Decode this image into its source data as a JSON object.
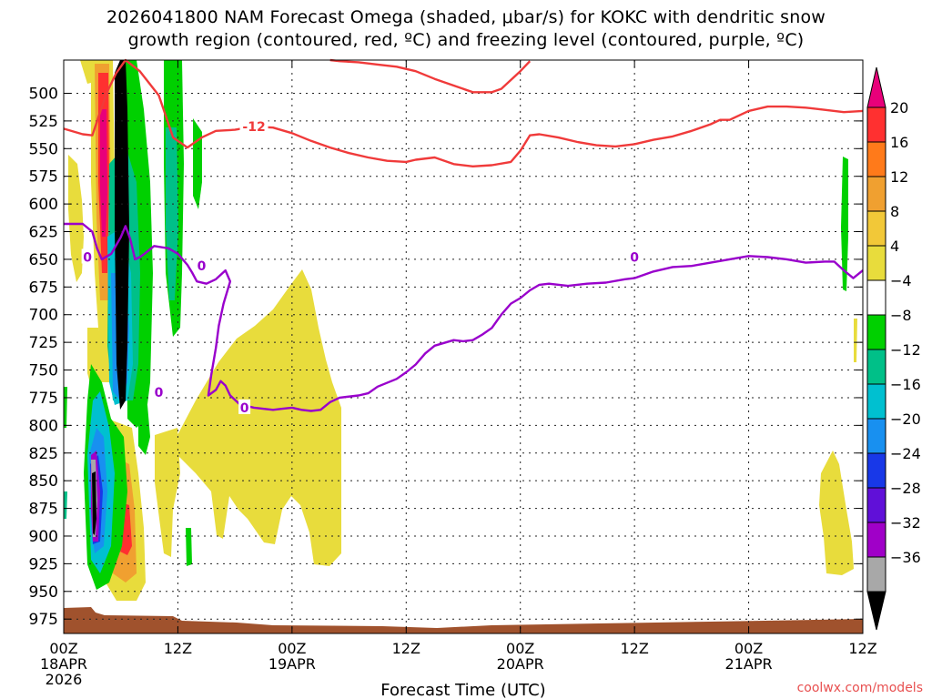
{
  "title_lines": [
    "2026041800 NAM Forecast Omega (shaded, μbar/s) for KOKC with dendritic snow",
    "growth region (contoured, red, ºC) and freezing level (contoured, purple, ºC)"
  ],
  "watermark": "coolwx.com/models",
  "chart_data": {
    "type": "heatmap",
    "xlabel": "Forecast Time (UTC)",
    "xlim": [
      0,
      84
    ],
    "ylim": [
      988,
      470
    ],
    "x_ticks": [
      {
        "hour": 0,
        "lines": [
          "00Z",
          "18APR",
          "2026"
        ]
      },
      {
        "hour": 12,
        "lines": [
          "12Z"
        ]
      },
      {
        "hour": 24,
        "lines": [
          "00Z",
          "19APR"
        ]
      },
      {
        "hour": 36,
        "lines": [
          "12Z"
        ]
      },
      {
        "hour": 48,
        "lines": [
          "00Z",
          "20APR"
        ]
      },
      {
        "hour": 60,
        "lines": [
          "12Z"
        ]
      },
      {
        "hour": 72,
        "lines": [
          "00Z",
          "21APR"
        ]
      },
      {
        "hour": 84,
        "lines": [
          "12Z"
        ]
      }
    ],
    "y_ticks": [
      500,
      525,
      550,
      575,
      600,
      625,
      650,
      675,
      700,
      725,
      750,
      775,
      800,
      825,
      850,
      875,
      900,
      925,
      950,
      975
    ],
    "grid": true,
    "colorbar": {
      "labels": [
        "20",
        "16",
        "12",
        "8",
        "4",
        "−4",
        "−8",
        "−12",
        "−16",
        "−20",
        "−24",
        "−28",
        "−32",
        "−36"
      ],
      "colors": [
        "#ff3030",
        "#ff7a1a",
        "#f0a030",
        "#f2c838",
        "#e8dc3c",
        "#ffffff",
        "#00d000",
        "#00c088",
        "#00c0d0",
        "#1890f0",
        "#1838e8",
        "#6010d8",
        "#a000c8",
        "#a8a8a8"
      ],
      "top_arrow_color": "#e8007a",
      "bottom_arrow_color": "#000000"
    },
    "contours": [
      {
        "color": "#f03a3a",
        "label": "-12",
        "points": [
          [
            0,
            532
          ],
          [
            2,
            537
          ],
          [
            3,
            538
          ],
          [
            4.5,
            500
          ],
          [
            5.5,
            482
          ],
          [
            6.5,
            470
          ],
          [
            8,
            480
          ],
          [
            10,
            502
          ],
          [
            11.5,
            540
          ],
          [
            13,
            549
          ],
          [
            14.5,
            540
          ],
          [
            16,
            534
          ],
          [
            18,
            533
          ],
          [
            20,
            530
          ],
          [
            22,
            531
          ],
          [
            24,
            536
          ],
          [
            26,
            543
          ],
          [
            28,
            549
          ],
          [
            30,
            554
          ],
          [
            32,
            558
          ],
          [
            34,
            561
          ],
          [
            36,
            562
          ],
          [
            37,
            560
          ],
          [
            39,
            558
          ],
          [
            41,
            564
          ],
          [
            43,
            566
          ],
          [
            45,
            565
          ],
          [
            47,
            562
          ],
          [
            48,
            552
          ],
          [
            49,
            538
          ],
          [
            50,
            537
          ],
          [
            52,
            540
          ],
          [
            54,
            544
          ],
          [
            56,
            547
          ],
          [
            58,
            548
          ],
          [
            60,
            546
          ],
          [
            62,
            542
          ],
          [
            64,
            539
          ],
          [
            66,
            534
          ],
          [
            68,
            528
          ],
          [
            69,
            524
          ],
          [
            70,
            524
          ],
          [
            72,
            516
          ],
          [
            74,
            512
          ],
          [
            76,
            512
          ],
          [
            78,
            513
          ],
          [
            80,
            515
          ],
          [
            82,
            517
          ],
          [
            84,
            516
          ]
        ]
      },
      {
        "color": "#f03a3a",
        "label": "",
        "points": [
          [
            28,
            470
          ],
          [
            29,
            471
          ],
          [
            31,
            472
          ],
          [
            33,
            474
          ],
          [
            35,
            476
          ],
          [
            37,
            480
          ],
          [
            39,
            487
          ],
          [
            41,
            493
          ],
          [
            43,
            499
          ],
          [
            45,
            499
          ],
          [
            46,
            496
          ],
          [
            47,
            488
          ],
          [
            48,
            480
          ],
          [
            49,
            471
          ]
        ]
      },
      {
        "color": "#9900cc",
        "label": "0",
        "points": [
          [
            0,
            618
          ],
          [
            2,
            618
          ],
          [
            3,
            625
          ],
          [
            3.5,
            640
          ],
          [
            4,
            650
          ],
          [
            5,
            645
          ],
          [
            6,
            630
          ],
          [
            6.5,
            620
          ],
          [
            7,
            632
          ],
          [
            7.5,
            650
          ],
          [
            8,
            648
          ],
          [
            8.5,
            645
          ],
          [
            9.5,
            638
          ],
          [
            11,
            640
          ],
          [
            12,
            645
          ],
          [
            13,
            655
          ],
          [
            13.5,
            662
          ],
          [
            14,
            670
          ],
          [
            15,
            672
          ],
          [
            16,
            668
          ],
          [
            17,
            660
          ],
          [
            17.5,
            670
          ],
          [
            16.8,
            690
          ],
          [
            16.3,
            710
          ],
          [
            16,
            730
          ],
          [
            15.5,
            755
          ],
          [
            15.2,
            773
          ],
          [
            16,
            768
          ],
          [
            16.5,
            760
          ],
          [
            17,
            764
          ],
          [
            17.5,
            773
          ],
          [
            18.5,
            781
          ],
          [
            20,
            784
          ],
          [
            22,
            786
          ],
          [
            23,
            785
          ],
          [
            24,
            784
          ],
          [
            25,
            786
          ],
          [
            26,
            787
          ],
          [
            27,
            786
          ],
          [
            28,
            779
          ],
          [
            29,
            775
          ],
          [
            31,
            773
          ],
          [
            32,
            771
          ],
          [
            33,
            765
          ],
          [
            35,
            758
          ],
          [
            36,
            752
          ],
          [
            37,
            745
          ],
          [
            38,
            735
          ],
          [
            39,
            728
          ],
          [
            41,
            723
          ],
          [
            42,
            724
          ],
          [
            43,
            723
          ],
          [
            44,
            718
          ],
          [
            45,
            712
          ],
          [
            46,
            700
          ],
          [
            47,
            690
          ],
          [
            48,
            685
          ],
          [
            49,
            678
          ],
          [
            50,
            673
          ],
          [
            51,
            672
          ],
          [
            53,
            674
          ],
          [
            55,
            672
          ],
          [
            57,
            671
          ],
          [
            59,
            668
          ],
          [
            60,
            667
          ],
          [
            62,
            661
          ],
          [
            64,
            657
          ],
          [
            66,
            656
          ],
          [
            68,
            653
          ],
          [
            70,
            650
          ],
          [
            72,
            647
          ],
          [
            74,
            648
          ],
          [
            76,
            650
          ],
          [
            78,
            653
          ],
          [
            80,
            652
          ],
          [
            81,
            652
          ],
          [
            82,
            660
          ],
          [
            83,
            667
          ],
          [
            84,
            660
          ]
        ]
      }
    ]
  }
}
